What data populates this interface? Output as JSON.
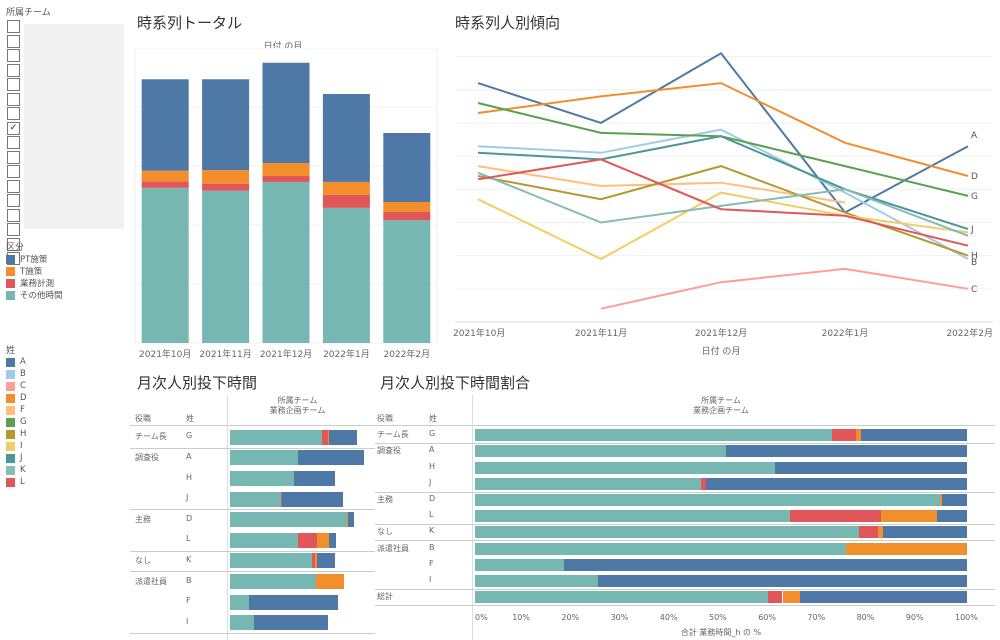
{
  "sidebar": {
    "filter": {
      "title": "所属チーム",
      "items": [
        {
          "checked": false
        },
        {
          "checked": false
        },
        {
          "checked": false
        },
        {
          "checked": false
        },
        {
          "checked": false
        },
        {
          "checked": false
        },
        {
          "checked": false
        },
        {
          "checked": true
        },
        {
          "checked": false
        },
        {
          "checked": false
        },
        {
          "checked": false
        },
        {
          "checked": false
        },
        {
          "checked": false
        },
        {
          "checked": false
        },
        {
          "checked": false
        },
        {
          "checked": false
        },
        {
          "checked": false
        }
      ],
      "checkmark": "✓"
    },
    "category_legend": {
      "title": "区分",
      "items": [
        {
          "label": "PT施策",
          "color": "#4e79a7"
        },
        {
          "label": "T施策",
          "color": "#f28e2b"
        },
        {
          "label": "業務計測",
          "color": "#e15759"
        },
        {
          "label": "その他時間",
          "color": "#76b7b2"
        }
      ]
    },
    "person_legend": {
      "title": "姓",
      "items": [
        {
          "label": "A",
          "color": "#4e79a7"
        },
        {
          "label": "B",
          "color": "#a0cbe8"
        },
        {
          "label": "C",
          "color": "#ff9d9a"
        },
        {
          "label": "D",
          "color": "#f28e2b"
        },
        {
          "label": "F",
          "color": "#ffbe7d"
        },
        {
          "label": "G",
          "color": "#59a14f"
        },
        {
          "label": "H",
          "color": "#b6992d"
        },
        {
          "label": "I",
          "color": "#f1ce63"
        },
        {
          "label": "J",
          "color": "#499894"
        },
        {
          "label": "K",
          "color": "#86bcb6"
        },
        {
          "label": "L",
          "color": "#e15759"
        }
      ]
    }
  },
  "panels": {
    "total": {
      "title": "時系列トータル",
      "header": "日付 の月"
    },
    "trend": {
      "title": "時系列人別傾向",
      "xlabel": "日付 の月"
    },
    "hours": {
      "title": "月次人別投下時間",
      "col_head1": "役職",
      "col_head2": "姓",
      "team_head1": "所属チーム",
      "team_head2": "業務企画チーム"
    },
    "ratio": {
      "title": "月次人別投下時間割合",
      "col_head1": "役職",
      "col_head2": "姓",
      "team_head1": "所属チーム",
      "team_head2": "業務企画チーム",
      "xlabel": "合計 業務時間_h の %"
    }
  },
  "chart_data": [
    {
      "id": "total",
      "type": "bar",
      "stacked": true,
      "title": "時系列トータル",
      "xlabel": "日付 の月",
      "ylabel": "",
      "categories": [
        "2021年10月",
        "2021年11月",
        "2021年12月",
        "2022年1月",
        "2022年2月"
      ],
      "series": [
        {
          "name": "その他時間",
          "color": "#76b7b2",
          "values": [
            263,
            258,
            273,
            229,
            208
          ]
        },
        {
          "name": "業務計測",
          "color": "#e15759",
          "values": [
            11,
            12,
            10,
            22,
            14
          ]
        },
        {
          "name": "T施策",
          "color": "#f28e2b",
          "values": [
            18,
            23,
            22,
            22,
            17
          ]
        },
        {
          "name": "PT施策",
          "color": "#4e79a7",
          "values": [
            155,
            154,
            170,
            149,
            117
          ]
        }
      ],
      "ylim": [
        0,
        500
      ],
      "grid": true
    },
    {
      "id": "trend",
      "type": "line",
      "title": "時系列人別傾向",
      "xlabel": "日付 の月",
      "x": [
        "2021年10月",
        "2021年11月",
        "2021年12月",
        "2022年1月",
        "2022年2月"
      ],
      "series": [
        {
          "name": "A",
          "color": "#4e79a7",
          "values": [
            72,
            60,
            81,
            33,
            53
          ]
        },
        {
          "name": "B",
          "color": "#a0cbe8",
          "values": [
            53,
            51,
            58,
            39,
            19
          ]
        },
        {
          "name": "C",
          "color": "#ff9d9a",
          "values": [
            null,
            4,
            12,
            16,
            10
          ]
        },
        {
          "name": "D",
          "color": "#f28e2b",
          "values": [
            63,
            68,
            72,
            54,
            44
          ]
        },
        {
          "name": "F",
          "color": "#ffbe7d",
          "values": [
            47,
            41,
            42,
            36,
            null
          ]
        },
        {
          "name": "G",
          "color": "#59a14f",
          "values": [
            66,
            57,
            56,
            47,
            38
          ]
        },
        {
          "name": "H",
          "color": "#b6992d",
          "values": [
            44,
            37,
            47,
            33,
            20
          ]
        },
        {
          "name": "I",
          "color": "#f1ce63",
          "values": [
            37,
            19,
            39,
            32,
            27
          ]
        },
        {
          "name": "J",
          "color": "#499894",
          "values": [
            51,
            49,
            56,
            40,
            28
          ]
        },
        {
          "name": "K",
          "color": "#86bcb6",
          "values": [
            45,
            30,
            35,
            40,
            26
          ]
        },
        {
          "name": "L",
          "color": "#e15759",
          "values": [
            43,
            49,
            34,
            32,
            23
          ]
        }
      ],
      "end_labels": [
        "A",
        "D",
        "G",
        "J",
        "H",
        "B",
        "C"
      ],
      "ylim": [
        0,
        85
      ],
      "grid": true
    },
    {
      "id": "hours",
      "type": "bar",
      "orientation": "horizontal",
      "stacked": true,
      "title": "月次人別投下時間",
      "row_groups": [
        {
          "role": "チーム長",
          "names": [
            "G"
          ]
        },
        {
          "role": "調査役",
          "names": [
            "A",
            "H",
            "J"
          ]
        },
        {
          "role": "主務",
          "names": [
            "D",
            "L"
          ]
        },
        {
          "role": "なし",
          "names": [
            "K"
          ]
        },
        {
          "role": "派遣社員",
          "names": [
            "B",
            "F",
            "I"
          ]
        }
      ],
      "categories": [
        "G",
        "A",
        "H",
        "J",
        "D",
        "L",
        "K",
        "B",
        "F",
        "I"
      ],
      "series": [
        {
          "name": "その他時間",
          "color": "#76b7b2",
          "values": [
            92,
            68,
            64,
            51,
            117,
            68,
            82,
            86,
            19,
            24
          ]
        },
        {
          "name": "業務計測",
          "color": "#e15759",
          "values": [
            6,
            0,
            0,
            1,
            0,
            19,
            3,
            0,
            0,
            0
          ]
        },
        {
          "name": "T施策",
          "color": "#f28e2b",
          "values": [
            1,
            0,
            0,
            0,
            1,
            12,
            2,
            28,
            0,
            0
          ]
        },
        {
          "name": "PT施策",
          "color": "#4e79a7",
          "values": [
            28,
            66,
            41,
            61,
            6,
            7,
            18,
            0,
            89,
            74
          ]
        }
      ],
      "xlim": [
        0,
        135
      ]
    },
    {
      "id": "ratio",
      "type": "bar",
      "orientation": "horizontal",
      "stacked": true,
      "title": "月次人別投下時間割合",
      "xlabel": "合計 業務時間_h の %",
      "row_groups": [
        {
          "role": "チーム長",
          "names": [
            "G"
          ]
        },
        {
          "role": "調査役",
          "names": [
            "A",
            "H",
            "J"
          ]
        },
        {
          "role": "主務",
          "names": [
            "D",
            "L"
          ]
        },
        {
          "role": "なし",
          "names": [
            "K"
          ]
        },
        {
          "role": "派遣社員",
          "names": [
            "B",
            "F",
            "I"
          ]
        },
        {
          "role": "総計",
          "names": [
            ""
          ]
        }
      ],
      "categories": [
        "G",
        "A",
        "H",
        "J",
        "D",
        "L",
        "K",
        "B",
        "F",
        "I",
        "総計"
      ],
      "series": [
        {
          "name": "その他時間",
          "color": "#76b7b2",
          "values": [
            72.5,
            51,
            61,
            46,
            94.5,
            64,
            78,
            75.5,
            18,
            25,
            59.5
          ]
        },
        {
          "name": "業務計測",
          "color": "#e15759",
          "values": [
            5,
            0,
            0,
            1,
            0,
            18.5,
            4,
            0,
            0,
            0,
            3
          ]
        },
        {
          "name": "T施策",
          "color": "#f28e2b",
          "values": [
            1,
            0,
            0,
            0,
            0.5,
            11.5,
            1,
            24.5,
            0,
            0,
            3.5
          ]
        },
        {
          "name": "PT施策",
          "color": "#4e79a7",
          "values": [
            21.5,
            49,
            39,
            53,
            5,
            6,
            17,
            0,
            82,
            75,
            34
          ]
        }
      ],
      "xticks": [
        "0%",
        "10%",
        "20%",
        "30%",
        "40%",
        "50%",
        "60%",
        "70%",
        "80%",
        "90%",
        "100%"
      ],
      "xlim": [
        0,
        100
      ]
    }
  ]
}
